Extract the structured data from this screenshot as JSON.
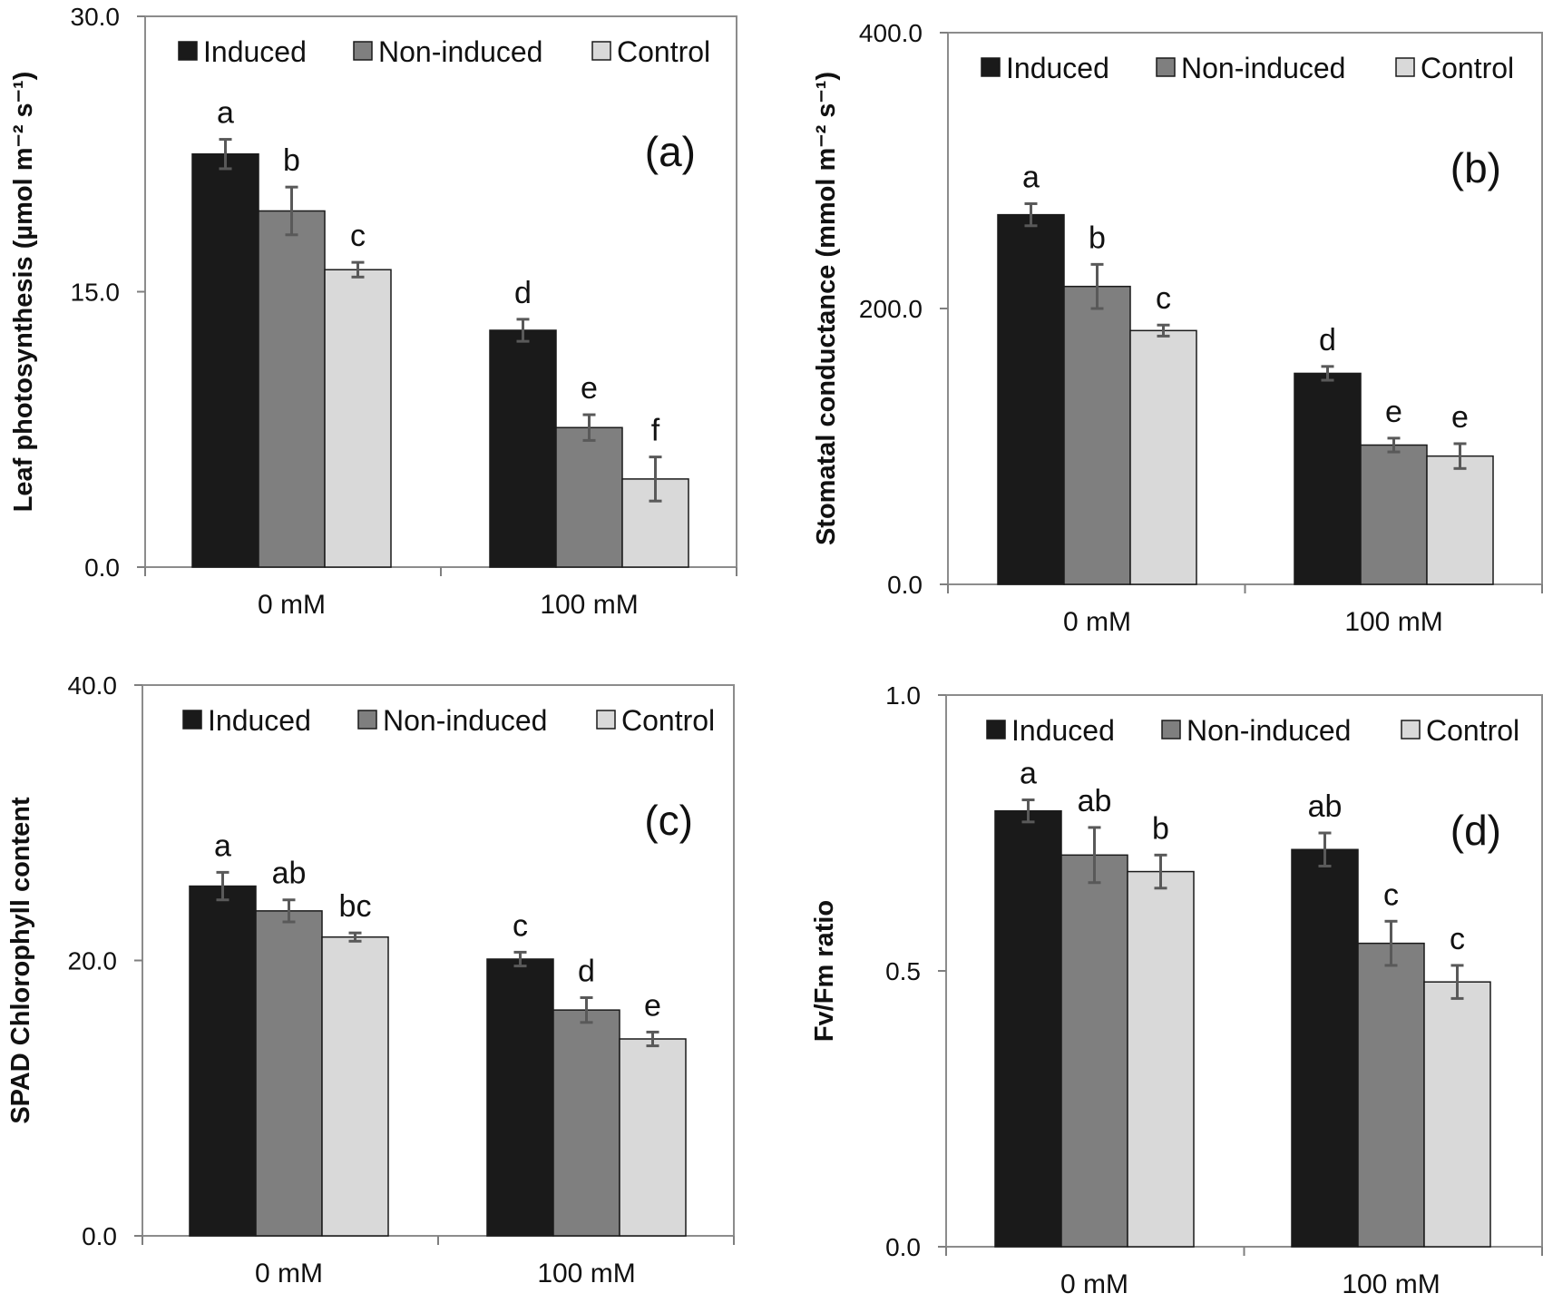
{
  "legend": [
    "Induced",
    "Non-induced",
    "Control"
  ],
  "colors": {
    "Induced": "#1a1a1a",
    "Non-induced": "#7f7f7f",
    "Control": "#d9d9d9",
    "errorbar": "#595959",
    "axis": "#7f7f7f",
    "frame": "#8c8c8c"
  },
  "chart_data": [
    {
      "type": "bar",
      "panel_label": "(a)",
      "ylabel": "Leaf photosynthesis (µmol m⁻² s⁻¹)",
      "categories": [
        "0 mM",
        "100 mM"
      ],
      "ylim": [
        0,
        30
      ],
      "yticks": [
        "0.0",
        "15.0",
        "30.0"
      ],
      "legend_position": "top",
      "series": [
        {
          "name": "Induced",
          "values": [
            22.5,
            12.9
          ],
          "errors": [
            0.8,
            0.6
          ],
          "letters": [
            "a",
            "d"
          ]
        },
        {
          "name": "Non-induced",
          "values": [
            19.4,
            7.6
          ],
          "errors": [
            1.3,
            0.7
          ],
          "letters": [
            "b",
            "e"
          ]
        },
        {
          "name": "Control",
          "values": [
            16.2,
            4.8
          ],
          "errors": [
            0.4,
            1.2
          ],
          "letters": [
            "c",
            "f"
          ]
        }
      ]
    },
    {
      "type": "bar",
      "panel_label": "(b)",
      "ylabel": "Stomatal conductance (mmol m⁻² s⁻¹)",
      "categories": [
        "0 mM",
        "100 mM"
      ],
      "ylim": [
        0,
        400
      ],
      "yticks": [
        "0.0",
        "200.0",
        "400.0"
      ],
      "legend_position": "top",
      "series": [
        {
          "name": "Induced",
          "values": [
            268,
            153
          ],
          "errors": [
            8,
            5
          ],
          "letters": [
            "a",
            "d"
          ]
        },
        {
          "name": "Non-induced",
          "values": [
            216,
            101
          ],
          "errors": [
            16,
            5
          ],
          "letters": [
            "b",
            "e"
          ]
        },
        {
          "name": "Control",
          "values": [
            184,
            93
          ],
          "errors": [
            4,
            9
          ],
          "letters": [
            "c",
            "e"
          ]
        }
      ]
    },
    {
      "type": "bar",
      "panel_label": "(c)",
      "ylabel": "SPAD Chlorophyll content",
      "categories": [
        "0 mM",
        "100 mM"
      ],
      "ylim": [
        0,
        40
      ],
      "yticks": [
        "0.0",
        "20.0",
        "40.0"
      ],
      "legend_position": "top",
      "series": [
        {
          "name": "Induced",
          "values": [
            25.4,
            20.1
          ],
          "errors": [
            1.0,
            0.5
          ],
          "letters": [
            "a",
            "c"
          ]
        },
        {
          "name": "Non-induced",
          "values": [
            23.6,
            16.4
          ],
          "errors": [
            0.8,
            0.9
          ],
          "letters": [
            "ab",
            "d"
          ]
        },
        {
          "name": "Control",
          "values": [
            21.7,
            14.3
          ],
          "errors": [
            0.3,
            0.5
          ],
          "letters": [
            "bc",
            "e"
          ]
        }
      ]
    },
    {
      "type": "bar",
      "panel_label": "(d)",
      "ylabel": "Fv/Fm ratio",
      "categories": [
        "0 mM",
        "100 mM"
      ],
      "ylim": [
        0,
        1
      ],
      "yticks": [
        "0.0",
        "0.5",
        "1.0"
      ],
      "legend_position": "top",
      "series": [
        {
          "name": "Induced",
          "values": [
            0.79,
            0.72
          ],
          "errors": [
            0.02,
            0.03
          ],
          "letters": [
            "a",
            "ab"
          ]
        },
        {
          "name": "Non-induced",
          "values": [
            0.71,
            0.55
          ],
          "errors": [
            0.05,
            0.04
          ],
          "letters": [
            "ab",
            "c"
          ]
        },
        {
          "name": "Control",
          "values": [
            0.68,
            0.48
          ],
          "errors": [
            0.03,
            0.03
          ],
          "letters": [
            "b",
            "c"
          ]
        }
      ]
    }
  ]
}
